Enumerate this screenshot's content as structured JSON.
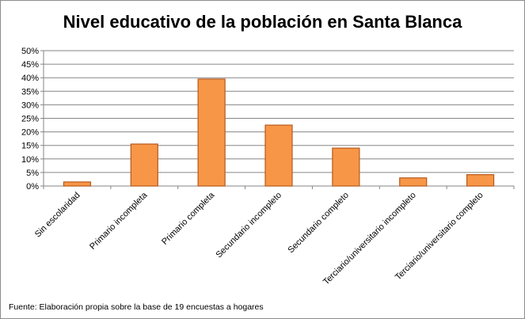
{
  "chart_data": {
    "type": "bar",
    "title": "Nivel educativo de la población en Santa Blanca",
    "categories": [
      "Sin escolaridad",
      "Primario incompleta",
      "Primario completa",
      "Secundario incompleto",
      "Secundario completo",
      "Terciario/universitario incompleto",
      "Terciario/universitario completo"
    ],
    "values": [
      1.5,
      15.5,
      39.5,
      22.5,
      14,
      3,
      4.2
    ],
    "ylim": [
      0,
      50
    ],
    "yticks": [
      0,
      5,
      10,
      15,
      20,
      25,
      30,
      35,
      40,
      45,
      50
    ],
    "ytick_labels": [
      "0%",
      "5%",
      "10%",
      "15%",
      "20%",
      "25%",
      "30%",
      "35%",
      "40%",
      "45%",
      "50%"
    ],
    "grid": true,
    "bar_color": "#f79646",
    "bar_edge_color": "#b7591d",
    "note": "Fuente: Elaboración propia sobre la base de 19 encuestas a hogares"
  }
}
